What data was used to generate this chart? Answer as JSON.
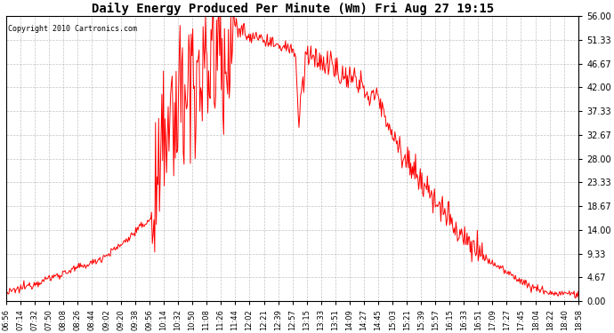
{
  "title": "Daily Energy Produced Per Minute (Wm) Fri Aug 27 19:15",
  "copyright": "Copyright 2010 Cartronics.com",
  "line_color": "#FF0000",
  "background_color": "#FFFFFF",
  "plot_bg_color": "#FFFFFF",
  "grid_color": "#AAAAAA",
  "yticks": [
    0.0,
    4.67,
    9.33,
    14.0,
    18.67,
    23.33,
    28.0,
    32.67,
    37.33,
    42.0,
    46.67,
    51.33,
    56.0
  ],
  "ylim": [
    0,
    56
  ],
  "xtick_labels": [
    "06:56",
    "07:14",
    "07:32",
    "07:50",
    "08:08",
    "08:26",
    "08:44",
    "09:02",
    "09:20",
    "09:38",
    "09:56",
    "10:14",
    "10:32",
    "10:50",
    "11:08",
    "11:26",
    "11:44",
    "12:02",
    "12:21",
    "12:39",
    "12:57",
    "13:15",
    "13:33",
    "13:51",
    "14:09",
    "14:27",
    "14:45",
    "15:03",
    "15:21",
    "15:39",
    "15:57",
    "16:15",
    "16:33",
    "16:51",
    "17:09",
    "17:27",
    "17:45",
    "18:04",
    "18:22",
    "18:40",
    "18:58"
  ],
  "figsize": [
    6.9,
    3.75
  ],
  "dpi": 100
}
